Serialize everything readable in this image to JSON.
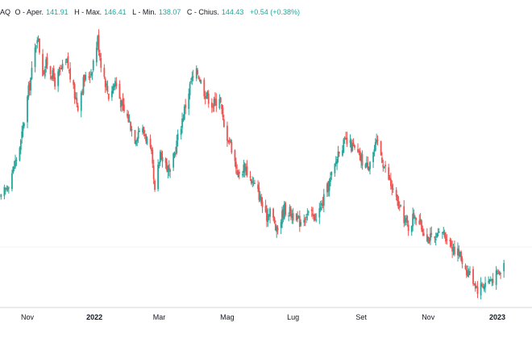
{
  "legend": {
    "symbol": "AQ",
    "open_label": "O - Aper.",
    "open_value": "141.91",
    "high_label": "H - Max.",
    "high_value": "146.41",
    "low_label": "L - Min.",
    "low_value": "138.07",
    "close_label": "C - Chius.",
    "close_value": "144.43",
    "change": "+0.54 (+0.38%)"
  },
  "colors": {
    "up": "#26a69a",
    "down": "#ef5350",
    "grid": "#f0f3fa",
    "axis": "#d1d4dc",
    "text": "#131722",
    "background": "#ffffff"
  },
  "chart_data": {
    "type": "candlestick",
    "grid": true,
    "y_axis_visible": false,
    "x_ticks": [
      {
        "label": "Nov",
        "x": "2021-11-01",
        "bold": false
      },
      {
        "label": "2022",
        "x": "2022-01-01",
        "bold": true
      },
      {
        "label": "Mar",
        "x": "2022-03-01",
        "bold": false
      },
      {
        "label": "Mag",
        "x": "2022-05-02",
        "bold": false
      },
      {
        "label": "Lug",
        "x": "2022-07-01",
        "bold": false
      },
      {
        "label": "Set",
        "x": "2022-09-01",
        "bold": false
      },
      {
        "label": "Nov",
        "x": "2022-11-01",
        "bold": false
      },
      {
        "label": "2023",
        "x": "2023-01-03",
        "bold": true
      }
    ],
    "keypoints": [
      [
        "2021-10-08",
        143
      ],
      [
        "2021-10-14",
        146
      ],
      [
        "2021-10-20",
        150
      ],
      [
        "2021-10-26",
        155
      ],
      [
        "2021-11-02",
        166
      ],
      [
        "2021-11-05",
        170
      ],
      [
        "2021-11-10",
        178
      ],
      [
        "2021-11-15",
        170
      ],
      [
        "2021-11-19",
        172
      ],
      [
        "2021-11-26",
        168
      ],
      [
        "2021-12-01",
        170
      ],
      [
        "2021-12-07",
        172
      ],
      [
        "2021-12-13",
        166
      ],
      [
        "2021-12-17",
        163
      ],
      [
        "2021-12-22",
        168
      ],
      [
        "2021-12-29",
        170
      ],
      [
        "2022-01-04",
        177
      ],
      [
        "2022-01-07",
        172
      ],
      [
        "2022-01-11",
        168
      ],
      [
        "2022-01-14",
        165
      ],
      [
        "2022-01-20",
        168
      ],
      [
        "2022-01-27",
        162
      ],
      [
        "2022-02-01",
        160
      ],
      [
        "2022-02-07",
        156
      ],
      [
        "2022-02-11",
        158
      ],
      [
        "2022-02-16",
        157
      ],
      [
        "2022-02-22",
        152
      ],
      [
        "2022-02-25",
        144
      ],
      [
        "2022-03-02",
        153
      ],
      [
        "2022-03-08",
        150
      ],
      [
        "2022-03-11",
        148
      ],
      [
        "2022-03-17",
        155
      ],
      [
        "2022-03-24",
        162
      ],
      [
        "2022-03-30",
        168
      ],
      [
        "2022-04-05",
        170
      ],
      [
        "2022-04-11",
        166
      ],
      [
        "2022-04-19",
        163
      ],
      [
        "2022-04-25",
        165
      ],
      [
        "2022-04-29",
        158
      ],
      [
        "2022-05-05",
        155
      ],
      [
        "2022-05-12",
        148
      ],
      [
        "2022-05-18",
        150
      ],
      [
        "2022-05-24",
        147
      ],
      [
        "2022-05-31",
        144
      ],
      [
        "2022-06-06",
        139
      ],
      [
        "2022-06-10",
        141
      ],
      [
        "2022-06-16",
        136
      ],
      [
        "2022-06-23",
        141
      ],
      [
        "2022-06-30",
        140
      ],
      [
        "2022-07-06",
        138
      ],
      [
        "2022-07-13",
        140
      ],
      [
        "2022-07-20",
        139
      ],
      [
        "2022-07-26",
        141
      ],
      [
        "2022-08-01",
        145
      ],
      [
        "2022-08-08",
        150
      ],
      [
        "2022-08-12",
        154
      ],
      [
        "2022-08-18",
        155
      ],
      [
        "2022-08-24",
        154
      ],
      [
        "2022-08-30",
        152
      ],
      [
        "2022-09-06",
        150
      ],
      [
        "2022-09-12",
        153
      ],
      [
        "2022-09-16",
        155
      ],
      [
        "2022-09-22",
        150
      ],
      [
        "2022-09-28",
        146
      ],
      [
        "2022-10-04",
        142
      ],
      [
        "2022-10-10",
        139
      ],
      [
        "2022-10-14",
        137
      ],
      [
        "2022-10-20",
        140
      ],
      [
        "2022-10-26",
        137
      ],
      [
        "2022-11-01",
        135
      ],
      [
        "2022-11-07",
        134
      ],
      [
        "2022-11-14",
        136
      ],
      [
        "2022-11-18",
        135
      ],
      [
        "2022-11-23",
        133
      ],
      [
        "2022-11-30",
        131
      ],
      [
        "2022-12-06",
        128
      ],
      [
        "2022-12-12",
        126
      ],
      [
        "2022-12-16",
        124
      ],
      [
        "2022-12-22",
        125
      ],
      [
        "2022-12-28",
        126
      ],
      [
        "2023-01-04",
        127
      ],
      [
        "2023-01-09",
        129
      ]
    ]
  }
}
